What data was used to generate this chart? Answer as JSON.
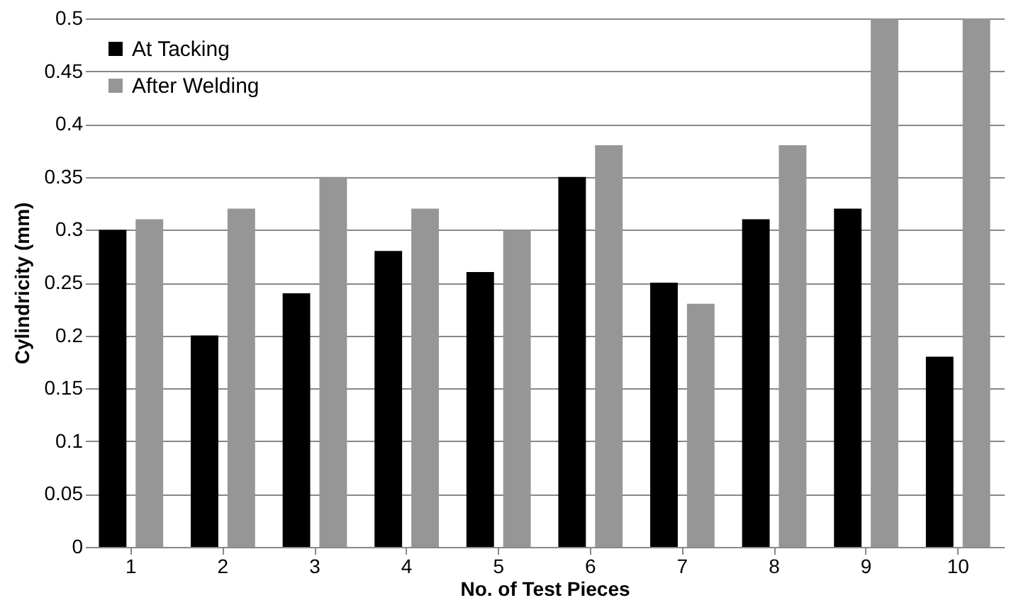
{
  "chart_data": {
    "type": "bar",
    "xlabel": "No. of Test Pieces",
    "ylabel": "Cylindricity (mm)",
    "categories": [
      "1",
      "2",
      "3",
      "4",
      "5",
      "6",
      "7",
      "8",
      "9",
      "10"
    ],
    "series": [
      {
        "name": "At Tacking",
        "color": "#000000",
        "values": [
          0.3,
          0.2,
          0.24,
          0.28,
          0.26,
          0.35,
          0.25,
          0.31,
          0.32,
          0.18
        ]
      },
      {
        "name": "After Welding",
        "color": "#969696",
        "values": [
          0.31,
          0.32,
          0.35,
          0.32,
          0.3,
          0.38,
          0.23,
          0.38,
          0.5,
          0.5
        ]
      }
    ],
    "ylim": [
      0,
      0.5
    ],
    "yticks": [
      0,
      0.05,
      0.1,
      0.15,
      0.2,
      0.25,
      0.3,
      0.35,
      0.4,
      0.45,
      0.5
    ],
    "grid": "y",
    "legend": "top left"
  }
}
